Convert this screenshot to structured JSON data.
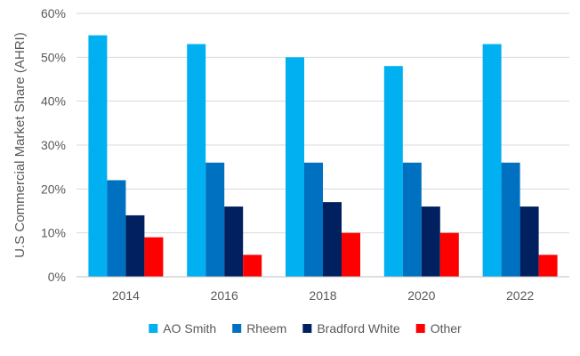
{
  "chart_data": {
    "type": "bar",
    "title": "",
    "xlabel": "",
    "ylabel": "U.S Commercial Market Share (AHRI)",
    "categories": [
      "2014",
      "2016",
      "2018",
      "2020",
      "2022"
    ],
    "ylim": [
      0,
      60
    ],
    "yticks": [
      0,
      10,
      20,
      30,
      40,
      50,
      60
    ],
    "ytick_suffix": "%",
    "grid": true,
    "legend_position": "bottom",
    "series": [
      {
        "name": "AO Smith",
        "color": "#00b0f0",
        "values": [
          55,
          53,
          50,
          48,
          53
        ]
      },
      {
        "name": "Rheem",
        "color": "#0070c0",
        "values": [
          22,
          26,
          26,
          26,
          26
        ]
      },
      {
        "name": "Bradford White",
        "color": "#002060",
        "values": [
          14,
          16,
          17,
          16,
          16
        ]
      },
      {
        "name": "Other",
        "color": "#ff0000",
        "values": [
          9,
          5,
          10,
          10,
          5
        ]
      }
    ]
  }
}
